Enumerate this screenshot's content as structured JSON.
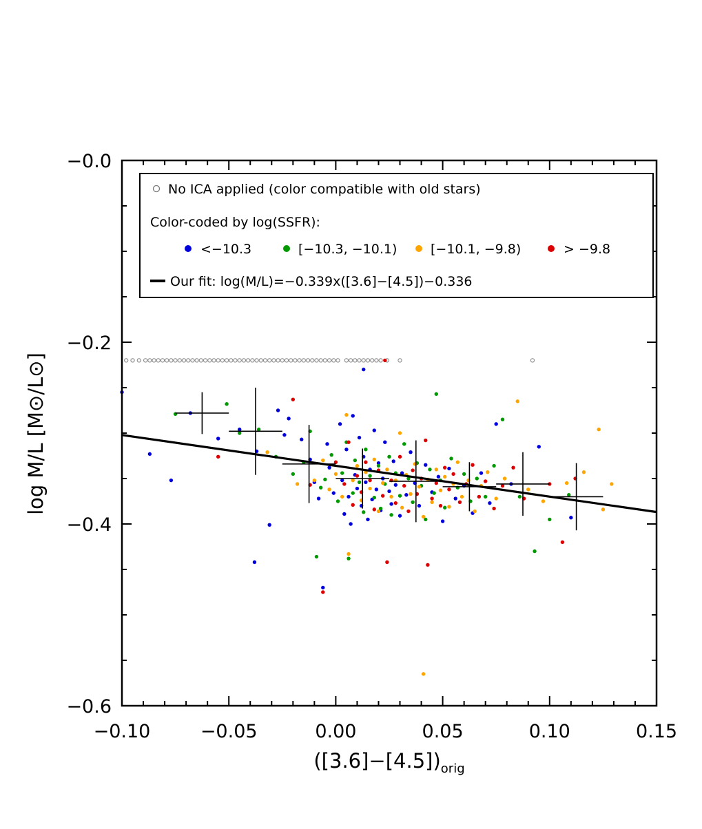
{
  "chart_data": {
    "type": "scatter",
    "title": "",
    "xlabel": {
      "pre": "([3.6]−[4.5])",
      "sub": "orig"
    },
    "ylabel": "log M/L [M⊙/L⊙]",
    "xlim": [
      -0.1,
      0.15
    ],
    "ylim": [
      -0.6,
      0.0
    ],
    "x_ticks": [
      "−0.10",
      "−0.05",
      "0.00",
      "0.05",
      "0.10",
      "0.15"
    ],
    "x_tick_values": [
      -0.1,
      -0.05,
      0.0,
      0.05,
      0.1,
      0.15
    ],
    "y_ticks": [
      "−0.0",
      "−0.2",
      "−0.4",
      "−0.6"
    ],
    "y_tick_values": [
      0.0,
      -0.2,
      -0.4,
      -0.6
    ],
    "grid": false,
    "legend": {
      "placement": "top",
      "open_marker_label": "No ICA applied (color compatible with old stars)",
      "color_title": "Color-coded by log(SSFR):",
      "bins": [
        {
          "label": "<−10.3",
          "color": "#0000dd"
        },
        {
          "label": "[−10.3, −10.1)",
          "color": "#009900"
        },
        {
          "label": "[−10.1, −9.8)",
          "color": "#ffa500"
        },
        {
          "label": "> −9.8",
          "color": "#dd0000"
        }
      ],
      "fit_label": "Our fit: log(M/L)=−0.339x([3.6]−[4.5])−0.336"
    },
    "fit_line": {
      "slope": -0.339,
      "intercept": -0.336,
      "color": "#000000"
    },
    "no_ica_points": {
      "y": -0.22,
      "x": [
        -0.098,
        -0.095,
        -0.092,
        -0.089,
        -0.087,
        -0.085,
        -0.083,
        -0.081,
        -0.079,
        -0.077,
        -0.075,
        -0.073,
        -0.071,
        -0.069,
        -0.067,
        -0.065,
        -0.063,
        -0.061,
        -0.059,
        -0.057,
        -0.055,
        -0.053,
        -0.051,
        -0.049,
        -0.047,
        -0.045,
        -0.043,
        -0.041,
        -0.039,
        -0.037,
        -0.035,
        -0.033,
        -0.031,
        -0.029,
        -0.027,
        -0.025,
        -0.023,
        -0.021,
        -0.019,
        -0.017,
        -0.015,
        -0.013,
        -0.011,
        -0.009,
        -0.007,
        -0.005,
        -0.003,
        -0.001,
        0.001,
        0.005,
        0.007,
        0.009,
        0.011,
        0.013,
        0.015,
        0.017,
        0.019,
        0.021,
        0.024,
        0.03,
        0.092
      ]
    },
    "series": [
      {
        "name": "<−10.3",
        "color": "#0000dd",
        "points": [
          [
            -0.1,
            -0.255
          ],
          [
            -0.087,
            -0.323
          ],
          [
            -0.077,
            -0.352
          ],
          [
            -0.068,
            -0.278
          ],
          [
            -0.055,
            -0.306
          ],
          [
            -0.045,
            -0.296
          ],
          [
            -0.038,
            -0.442
          ],
          [
            -0.037,
            -0.32
          ],
          [
            -0.031,
            -0.401
          ],
          [
            -0.027,
            -0.275
          ],
          [
            -0.024,
            -0.302
          ],
          [
            -0.022,
            -0.284
          ],
          [
            -0.016,
            -0.307
          ],
          [
            -0.012,
            -0.329
          ],
          [
            -0.01,
            -0.354
          ],
          [
            -0.008,
            -0.372
          ],
          [
            -0.006,
            -0.47
          ],
          [
            -0.004,
            -0.312
          ],
          [
            -0.003,
            -0.338
          ],
          [
            -0.001,
            -0.366
          ],
          [
            0.002,
            -0.29
          ],
          [
            0.003,
            -0.352
          ],
          [
            0.004,
            -0.389
          ],
          [
            0.005,
            -0.318
          ],
          [
            0.006,
            -0.37
          ],
          [
            0.007,
            -0.4
          ],
          [
            0.008,
            -0.281
          ],
          [
            0.009,
            -0.346
          ],
          [
            0.01,
            -0.361
          ],
          [
            0.011,
            -0.305
          ],
          [
            0.012,
            -0.38
          ],
          [
            0.013,
            -0.326
          ],
          [
            0.014,
            -0.354
          ],
          [
            0.015,
            -0.395
          ],
          [
            0.016,
            -0.34
          ],
          [
            0.017,
            -0.373
          ],
          [
            0.018,
            -0.297
          ],
          [
            0.019,
            -0.362
          ],
          [
            0.02,
            -0.333
          ],
          [
            0.021,
            -0.385
          ],
          [
            0.022,
            -0.35
          ],
          [
            0.023,
            -0.31
          ],
          [
            0.025,
            -0.364
          ],
          [
            0.026,
            -0.378
          ],
          [
            0.027,
            -0.331
          ],
          [
            0.028,
            -0.357
          ],
          [
            0.03,
            -0.391
          ],
          [
            0.031,
            -0.344
          ],
          [
            0.033,
            -0.368
          ],
          [
            0.035,
            -0.321
          ],
          [
            0.037,
            -0.355
          ],
          [
            0.039,
            -0.38
          ],
          [
            0.042,
            -0.335
          ],
          [
            0.045,
            -0.365
          ],
          [
            0.048,
            -0.348
          ],
          [
            0.05,
            -0.397
          ],
          [
            0.053,
            -0.339
          ],
          [
            0.056,
            -0.372
          ],
          [
            0.06,
            -0.358
          ],
          [
            0.064,
            -0.388
          ],
          [
            0.068,
            -0.344
          ],
          [
            0.072,
            -0.377
          ],
          [
            0.075,
            -0.29
          ],
          [
            0.082,
            -0.356
          ],
          [
            0.095,
            -0.315
          ],
          [
            0.11,
            -0.393
          ],
          [
            0.013,
            -0.23
          ]
        ]
      },
      {
        "name": "[−10.3, −10.1)",
        "color": "#009900",
        "points": [
          [
            -0.075,
            -0.279
          ],
          [
            -0.051,
            -0.268
          ],
          [
            -0.045,
            -0.3
          ],
          [
            -0.036,
            -0.296
          ],
          [
            -0.028,
            -0.326
          ],
          [
            -0.02,
            -0.345
          ],
          [
            -0.015,
            -0.332
          ],
          [
            -0.012,
            -0.298
          ],
          [
            -0.009,
            -0.436
          ],
          [
            -0.007,
            -0.36
          ],
          [
            -0.005,
            -0.351
          ],
          [
            -0.002,
            -0.324
          ],
          [
            0.001,
            -0.375
          ],
          [
            0.003,
            -0.344
          ],
          [
            0.005,
            -0.31
          ],
          [
            0.006,
            -0.438
          ],
          [
            0.008,
            -0.366
          ],
          [
            0.009,
            -0.33
          ],
          [
            0.011,
            -0.354
          ],
          [
            0.013,
            -0.387
          ],
          [
            0.014,
            -0.318
          ],
          [
            0.016,
            -0.347
          ],
          [
            0.018,
            -0.371
          ],
          [
            0.02,
            -0.336
          ],
          [
            0.021,
            -0.383
          ],
          [
            0.023,
            -0.356
          ],
          [
            0.025,
            -0.326
          ],
          [
            0.026,
            -0.39
          ],
          [
            0.028,
            -0.344
          ],
          [
            0.03,
            -0.369
          ],
          [
            0.032,
            -0.312
          ],
          [
            0.034,
            -0.35
          ],
          [
            0.036,
            -0.376
          ],
          [
            0.038,
            -0.333
          ],
          [
            0.04,
            -0.358
          ],
          [
            0.042,
            -0.395
          ],
          [
            0.044,
            -0.34
          ],
          [
            0.046,
            -0.366
          ],
          [
            0.047,
            -0.257
          ],
          [
            0.049,
            -0.352
          ],
          [
            0.051,
            -0.382
          ],
          [
            0.054,
            -0.328
          ],
          [
            0.057,
            -0.36
          ],
          [
            0.06,
            -0.345
          ],
          [
            0.063,
            -0.375
          ],
          [
            0.066,
            -0.35
          ],
          [
            0.07,
            -0.37
          ],
          [
            0.074,
            -0.336
          ],
          [
            0.078,
            -0.285
          ],
          [
            0.086,
            -0.37
          ],
          [
            0.093,
            -0.43
          ],
          [
            0.1,
            -0.395
          ],
          [
            0.109,
            -0.368
          ]
        ]
      },
      {
        "name": "[−10.1, −9.8)",
        "color": "#ffa500",
        "points": [
          [
            -0.032,
            -0.321
          ],
          [
            -0.018,
            -0.356
          ],
          [
            -0.01,
            -0.352
          ],
          [
            -0.006,
            -0.33
          ],
          [
            -0.003,
            -0.362
          ],
          [
            0.0,
            -0.345
          ],
          [
            0.003,
            -0.37
          ],
          [
            0.005,
            -0.28
          ],
          [
            0.006,
            -0.433
          ],
          [
            0.008,
            -0.352
          ],
          [
            0.01,
            -0.336
          ],
          [
            0.012,
            -0.374
          ],
          [
            0.014,
            -0.343
          ],
          [
            0.016,
            -0.361
          ],
          [
            0.018,
            -0.329
          ],
          [
            0.02,
            -0.386
          ],
          [
            0.022,
            -0.355
          ],
          [
            0.024,
            -0.34
          ],
          [
            0.026,
            -0.37
          ],
          [
            0.028,
            -0.352
          ],
          [
            0.03,
            -0.3
          ],
          [
            0.031,
            -0.382
          ],
          [
            0.033,
            -0.346
          ],
          [
            0.035,
            -0.367
          ],
          [
            0.037,
            -0.334
          ],
          [
            0.039,
            -0.359
          ],
          [
            0.041,
            -0.392
          ],
          [
            0.041,
            -0.565
          ],
          [
            0.043,
            -0.351
          ],
          [
            0.045,
            -0.376
          ],
          [
            0.047,
            -0.34
          ],
          [
            0.049,
            -0.363
          ],
          [
            0.051,
            -0.348
          ],
          [
            0.053,
            -0.381
          ],
          [
            0.055,
            -0.356
          ],
          [
            0.057,
            -0.332
          ],
          [
            0.059,
            -0.37
          ],
          [
            0.062,
            -0.352
          ],
          [
            0.065,
            -0.386
          ],
          [
            0.068,
            -0.358
          ],
          [
            0.071,
            -0.343
          ],
          [
            0.075,
            -0.372
          ],
          [
            0.079,
            -0.35
          ],
          [
            0.085,
            -0.265
          ],
          [
            0.09,
            -0.362
          ],
          [
            0.097,
            -0.375
          ],
          [
            0.108,
            -0.355
          ],
          [
            0.116,
            -0.343
          ],
          [
            0.123,
            -0.296
          ],
          [
            0.125,
            -0.384
          ],
          [
            0.129,
            -0.356
          ]
        ]
      },
      {
        "name": "> −9.8",
        "color": "#dd0000",
        "points": [
          [
            -0.055,
            -0.326
          ],
          [
            -0.02,
            -0.263
          ],
          [
            -0.012,
            -0.357
          ],
          [
            -0.006,
            -0.475
          ],
          [
            0.0,
            -0.332
          ],
          [
            0.004,
            -0.356
          ],
          [
            0.006,
            -0.31
          ],
          [
            0.008,
            -0.379
          ],
          [
            0.01,
            -0.347
          ],
          [
            0.012,
            -0.365
          ],
          [
            0.014,
            -0.332
          ],
          [
            0.016,
            -0.352
          ],
          [
            0.018,
            -0.384
          ],
          [
            0.02,
            -0.341
          ],
          [
            0.022,
            -0.369
          ],
          [
            0.023,
            -0.22
          ],
          [
            0.024,
            -0.442
          ],
          [
            0.026,
            -0.352
          ],
          [
            0.028,
            -0.377
          ],
          [
            0.03,
            -0.326
          ],
          [
            0.032,
            -0.358
          ],
          [
            0.034,
            -0.386
          ],
          [
            0.036,
            -0.341
          ],
          [
            0.038,
            -0.367
          ],
          [
            0.04,
            -0.35
          ],
          [
            0.042,
            -0.308
          ],
          [
            0.043,
            -0.445
          ],
          [
            0.045,
            -0.372
          ],
          [
            0.047,
            -0.355
          ],
          [
            0.049,
            -0.38
          ],
          [
            0.051,
            -0.338
          ],
          [
            0.053,
            -0.362
          ],
          [
            0.055,
            -0.345
          ],
          [
            0.058,
            -0.376
          ],
          [
            0.061,
            -0.356
          ],
          [
            0.064,
            -0.335
          ],
          [
            0.067,
            -0.37
          ],
          [
            0.07,
            -0.353
          ],
          [
            0.074,
            -0.383
          ],
          [
            0.078,
            -0.358
          ],
          [
            0.083,
            -0.338
          ],
          [
            0.088,
            -0.372
          ],
          [
            0.1,
            -0.356
          ],
          [
            0.106,
            -0.42
          ],
          [
            0.112,
            -0.35
          ]
        ]
      }
    ],
    "binned_means": [
      {
        "x": -0.0625,
        "y": -0.278,
        "xerr": 0.0125,
        "yerr": 0.023
      },
      {
        "x": -0.0375,
        "y": -0.298,
        "xerr": 0.0125,
        "yerr": 0.048
      },
      {
        "x": -0.0125,
        "y": -0.334,
        "xerr": 0.0125,
        "yerr": 0.043
      },
      {
        "x": 0.0125,
        "y": -0.35,
        "xerr": 0.0125,
        "yerr": 0.033
      },
      {
        "x": 0.0375,
        "y": -0.353,
        "xerr": 0.0125,
        "yerr": 0.045
      },
      {
        "x": 0.0625,
        "y": -0.359,
        "xerr": 0.0125,
        "yerr": 0.027
      },
      {
        "x": 0.0875,
        "y": -0.356,
        "xerr": 0.0125,
        "yerr": 0.035
      },
      {
        "x": 0.1125,
        "y": -0.37,
        "xerr": 0.0125,
        "yerr": 0.037
      }
    ]
  }
}
